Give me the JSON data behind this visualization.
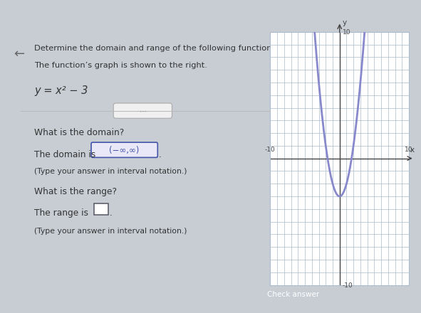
{
  "title_line1": "Determine the domain and range of the following function.",
  "title_line2": "The function’s graph is shown to the right.",
  "function_label": "y = x² − 3",
  "question1": "What is the domain?",
  "answer1_prefix": "The domain is ",
  "answer1_value": "(−∞,∞)",
  "answer1_suffix": ".",
  "answer1_note": "(Type your answer in interval notation.)",
  "question2": "What is the range?",
  "answer2_prefix": "The range is ",
  "answer2_note": "(Type your answer in interval notation.)",
  "graph_xlim": [
    -10,
    10
  ],
  "graph_ylim": [
    -10,
    10
  ],
  "curve_color": "#8888cc",
  "grid_color": "#aabbcc",
  "axis_color": "#444444",
  "bg_color_top": "#2196a0",
  "bg_color_left": "#c8b870",
  "text_color_dark": "#333333",
  "text_color_blue": "#4455aa",
  "highlight_box_color": "#4455aa",
  "highlight_box_bg": "#e8e8f8",
  "button_color": "#cc3333",
  "button_text": "Check answer"
}
